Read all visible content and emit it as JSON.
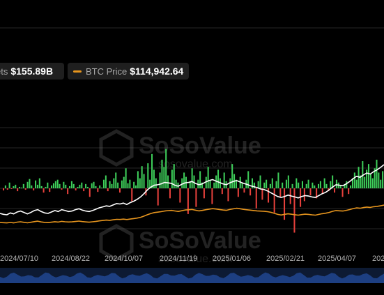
{
  "legend": {
    "assets_label_visible": "ets",
    "assets_value": "$155.89B",
    "btc_label": "BTC Price",
    "btc_value": "$114,942.64"
  },
  "watermark": {
    "brand": "SoSoValue",
    "sub": "sosovalue.com"
  },
  "colors": {
    "background": "#000000",
    "inflow": "#3ecf5a",
    "outflow": "#e8413c",
    "btc_line": "#e8961e",
    "assets_line": "#ffffff",
    "navigator": "#1d3f82"
  },
  "chart_data": {
    "type": "bar",
    "x_tick_labels": [
      "2024/07/10",
      "2024/08/22",
      "2024/10/07",
      "2024/11/19",
      "2025/01/06",
      "2025/02/21",
      "2025/04/07",
      "202"
    ],
    "series": [
      {
        "name": "BTC Price",
        "type": "line"
      }
    ],
    "legend_position": "top-left",
    "grid": true,
    "flow_bars": [
      -3,
      4,
      -2,
      8,
      -1,
      3,
      5,
      -4,
      2,
      1,
      6,
      -2,
      9,
      13,
      4,
      -3,
      11,
      5,
      14,
      3,
      -6,
      2,
      8,
      -5,
      4,
      7,
      10,
      12,
      6,
      -2,
      9,
      5,
      -8,
      3,
      10,
      6,
      -3,
      2,
      5,
      8,
      -4,
      6,
      2,
      -12,
      7,
      9,
      3,
      -5,
      4,
      1,
      12,
      18,
      -4,
      10,
      6,
      14,
      22,
      8,
      -6,
      11,
      16,
      28,
      7,
      12,
      -18,
      9,
      4,
      24,
      14,
      31,
      20,
      -10,
      35,
      12,
      48,
      26,
      14,
      -24,
      22,
      40,
      30,
      55,
      18,
      -14,
      26,
      34,
      12,
      8,
      -20,
      14,
      22,
      16,
      -36,
      10,
      28,
      18,
      -26,
      12,
      24,
      8,
      -14,
      16,
      30,
      12,
      -22,
      8,
      18,
      26,
      14,
      -8,
      22,
      10,
      -18,
      14,
      34,
      20,
      12,
      -12,
      16,
      8,
      -6,
      12,
      24,
      -10,
      14,
      8,
      -28,
      10,
      18,
      -16,
      8,
      12,
      -20,
      6,
      14,
      -34,
      10,
      22,
      -12,
      8,
      -44,
      12,
      18,
      -22,
      6,
      -62,
      14,
      8,
      -26,
      10,
      -18,
      6,
      12,
      -10,
      8,
      4,
      -14,
      6,
      10,
      -8,
      14,
      6,
      -4,
      10,
      18,
      -6,
      12,
      8,
      4,
      -12,
      6,
      10,
      -8,
      4,
      14,
      22,
      12,
      30,
      18,
      38,
      16,
      26,
      34,
      20,
      14,
      28,
      40,
      22,
      12,
      24
    ],
    "btc_price_trend": [
      58000,
      57500,
      56800,
      58200,
      57000,
      59500,
      60500,
      58800,
      57200,
      59000,
      61000,
      62500,
      60000,
      58500,
      57800,
      59200,
      60800,
      59600,
      61800,
      60500,
      59800,
      60200,
      61500,
      62800,
      61200,
      60000,
      59200,
      60500,
      62000,
      63500,
      64800,
      66000,
      65200,
      67000,
      68500,
      68000,
      69200,
      67800,
      69500,
      71000,
      72500,
      75000,
      79000,
      83500,
      87500,
      90500,
      91800,
      93500,
      95500,
      96800,
      97500,
      95800,
      94200,
      96500,
      98800,
      99500,
      100800,
      98200,
      96000,
      97500,
      99800,
      101500,
      103200,
      102000,
      100500,
      99000,
      97800,
      100500,
      102500,
      104500,
      103000,
      101000,
      99500,
      98500,
      97000,
      96000,
      95200,
      94800,
      93500,
      91500,
      88000,
      84500,
      82500,
      84800,
      86500,
      85000,
      83500,
      82000,
      83800,
      85200,
      84500,
      83000,
      82200,
      84500,
      86800,
      88500,
      91000,
      94500,
      97000,
      96200,
      95500,
      97800,
      100200,
      103500,
      105800,
      104500,
      106800,
      108500,
      107200,
      109500,
      110800,
      112500,
      114942
    ],
    "assets_trend": [
      52,
      50,
      49,
      53,
      51,
      55,
      57,
      54,
      51,
      54,
      58,
      60,
      56,
      53,
      52,
      55,
      58,
      56,
      60,
      58,
      56,
      57,
      60,
      62,
      59,
      57,
      56,
      58,
      61,
      64,
      66,
      68,
      67,
      70,
      73,
      72,
      74,
      71,
      75,
      78,
      82,
      87,
      94,
      102,
      108,
      112,
      113,
      115,
      118,
      117,
      116,
      112,
      110,
      114,
      117,
      118,
      120,
      116,
      113,
      115,
      119,
      122,
      124,
      121,
      118,
      115,
      113,
      117,
      120,
      122,
      119,
      116,
      114,
      111,
      109,
      107,
      104,
      103,
      100,
      96,
      92,
      88,
      86,
      88,
      91,
      89,
      87,
      85,
      88,
      90,
      89,
      87,
      86,
      90,
      94,
      97,
      102,
      108,
      113,
      112,
      111,
      115,
      120,
      126,
      131,
      129,
      134,
      138,
      136,
      141,
      145,
      150,
      155.89
    ]
  }
}
